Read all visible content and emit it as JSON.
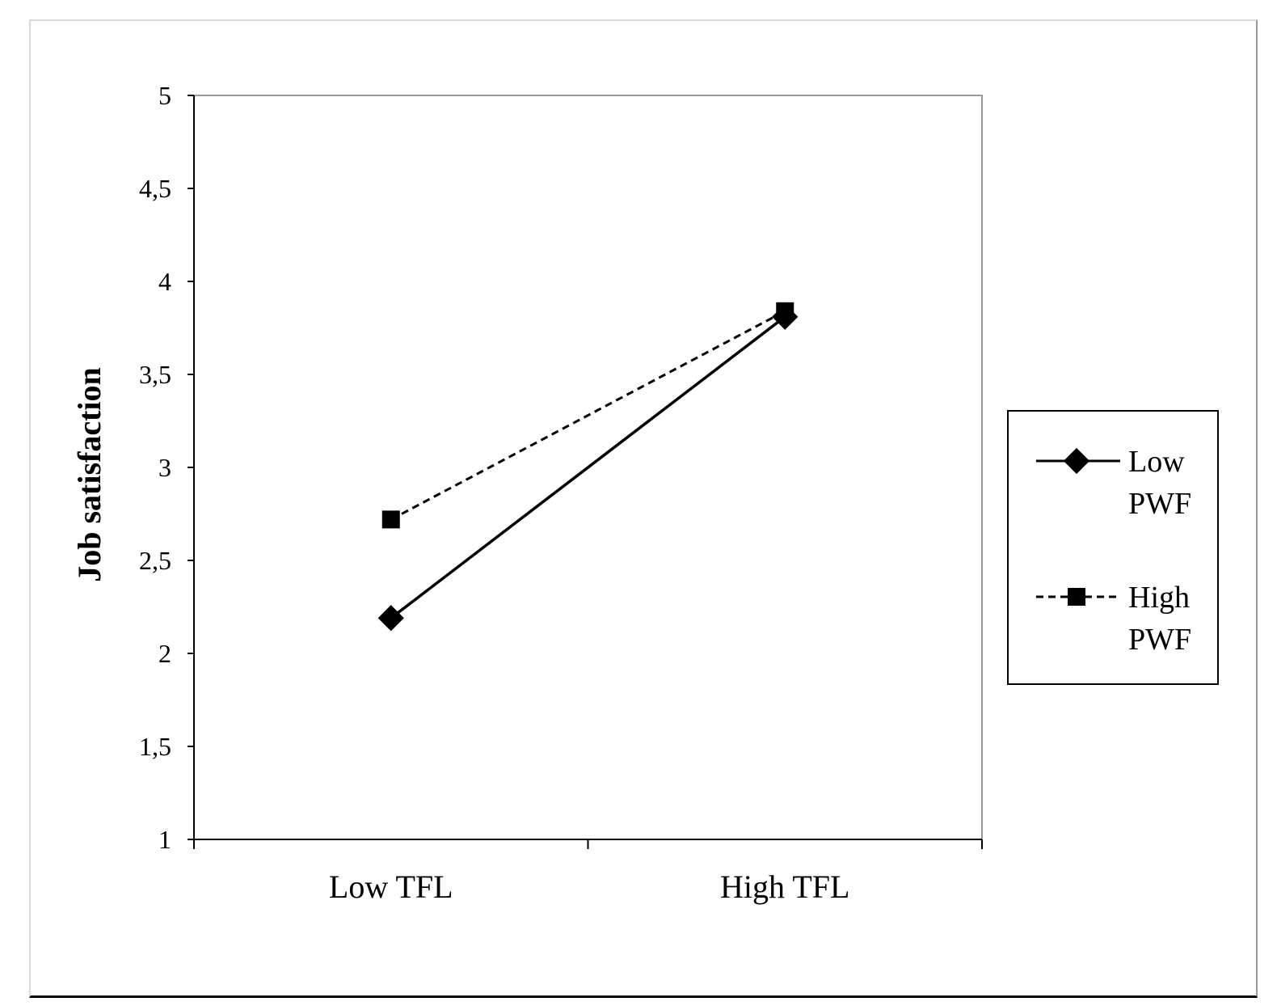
{
  "chart_data": {
    "type": "line",
    "title": "",
    "xlabel": "",
    "ylabel": "Job satisfaction",
    "categories": [
      "Low TFL",
      "High TFL"
    ],
    "ylim": [
      1,
      5
    ],
    "yticks": [
      "1",
      "1,5",
      "2",
      "2,5",
      "3",
      "3,5",
      "4",
      "4,5",
      "5"
    ],
    "ytick_values": [
      1,
      1.5,
      2,
      2.5,
      3,
      3.5,
      4,
      4.5,
      5
    ],
    "grid": false,
    "legend_position": "right",
    "series": [
      {
        "name": "Low PWF",
        "name_lines": [
          "Low",
          "PWF"
        ],
        "values": [
          2.19,
          3.81
        ],
        "marker": "diamond",
        "line_style": "solid",
        "color": "#000000"
      },
      {
        "name": "High PWF",
        "name_lines": [
          "High",
          "PWF"
        ],
        "values": [
          2.72,
          3.84
        ],
        "marker": "square",
        "line_style": "dashed",
        "color": "#000000"
      }
    ]
  }
}
